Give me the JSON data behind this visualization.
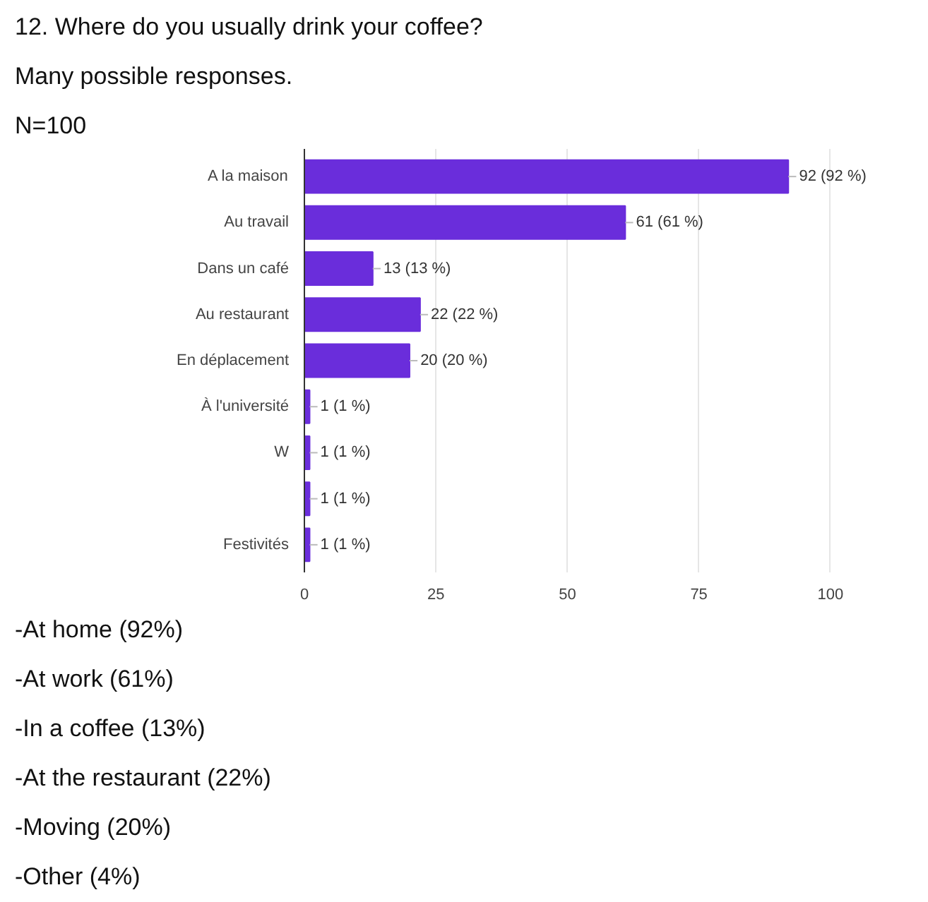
{
  "chart_data": {
    "type": "bar",
    "orientation": "horizontal",
    "title": "12. Where do you usually drink your coffee?",
    "subtitle": "Many possible responses.",
    "annotations": [
      "N=100",
      "-At home (92%)",
      "-At work (61%)",
      "-In a coffee (13%)",
      "-At the restaurant (22%)",
      "-Moving (20%)",
      "-Other (4%)"
    ],
    "categories": [
      "A la maison",
      "Au travail",
      "Dans un café",
      "Au restaurant",
      "En déplacement",
      "À l'université",
      "W",
      null,
      "Festivités"
    ],
    "values": [
      92,
      61,
      13,
      22,
      20,
      1,
      1,
      1,
      1
    ],
    "value_labels": [
      "92 (92 %)",
      "61 (61 %)",
      "13 (13 %)",
      "22 (22 %)",
      "20 (20 %)",
      "1 (1 %)",
      "1 (1 %)",
      "1 (1 %)",
      "1 (1 %)"
    ],
    "color": "#6a2ddb",
    "xlim": [
      0,
      100
    ],
    "xticks": [
      0,
      25,
      50,
      75,
      100
    ],
    "grid": "x"
  }
}
